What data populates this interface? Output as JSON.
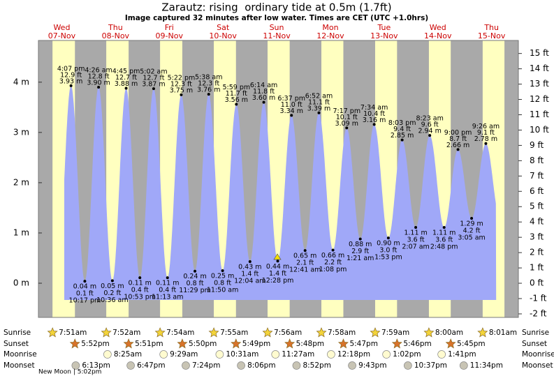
{
  "chart_data": {
    "type": "tide",
    "title": "Zarautz: rising  ordinary tide at 0.5m (1.7ft)",
    "subtitle": "Image captured 32 minutes after low water. Times are CET (UTC +1.0hrs)",
    "days": [
      {
        "weekday": "Wed",
        "date": "07-Nov"
      },
      {
        "weekday": "Thu",
        "date": "08-Nov"
      },
      {
        "weekday": "Fri",
        "date": "09-Nov"
      },
      {
        "weekday": "Sat",
        "date": "10-Nov"
      },
      {
        "weekday": "Sun",
        "date": "11-Nov"
      },
      {
        "weekday": "Mon",
        "date": "12-Nov"
      },
      {
        "weekday": "Tue",
        "date": "13-Nov"
      },
      {
        "weekday": "Wed",
        "date": "14-Nov"
      },
      {
        "weekday": "Thu",
        "date": "15-Nov"
      }
    ],
    "tides": [
      {
        "time": "4:07 pm",
        "height": 3.93,
        "height_label": "3.93 m",
        "feet_label": "12.9 ft"
      },
      {
        "time": "10:17 pm",
        "height": 0.04,
        "height_label": "0.04 m",
        "feet_label": "0.1 ft"
      },
      {
        "time": "4:26 am",
        "height": 3.9,
        "height_label": "3.90 m",
        "feet_label": "12.8 ft"
      },
      {
        "time": "10:36 am",
        "height": 0.05,
        "height_label": "0.05 m",
        "feet_label": "0.2 ft"
      },
      {
        "time": "4:45 pm",
        "height": 3.88,
        "height_label": "3.88 m",
        "feet_label": "12.7 ft"
      },
      {
        "time": "10:53 pm",
        "height": 0.11,
        "height_label": "0.11 m",
        "feet_label": "0.4 ft"
      },
      {
        "time": "5:02 am",
        "height": 3.87,
        "height_label": "3.87 m",
        "feet_label": "12.7 ft"
      },
      {
        "time": "11:13 am",
        "height": 0.11,
        "height_label": "0.11 m",
        "feet_label": "0.4 ft"
      },
      {
        "time": "5:22 pm",
        "height": 3.75,
        "height_label": "3.75 m",
        "feet_label": "12.3 ft"
      },
      {
        "time": "11:29 pm",
        "height": 0.24,
        "height_label": "0.24 m",
        "feet_label": "0.8 ft"
      },
      {
        "time": "5:38 am",
        "height": 3.76,
        "height_label": "3.76 m",
        "feet_label": "12.3 ft"
      },
      {
        "time": "11:50 am",
        "height": 0.25,
        "height_label": "0.25 m",
        "feet_label": "0.8 ft"
      },
      {
        "time": "5:59 pm",
        "height": 3.56,
        "height_label": "3.56 m",
        "feet_label": "11.7 ft"
      },
      {
        "time": "12:04 am",
        "height": 0.43,
        "height_label": "0.43 m",
        "feet_label": "1.4 ft"
      },
      {
        "time": "6:14 am",
        "height": 3.6,
        "height_label": "3.60 m",
        "feet_label": "11.8 ft"
      },
      {
        "time": "12:28 pm",
        "height": 0.44,
        "height_label": "0.44 m",
        "feet_label": "1.4 ft"
      },
      {
        "time": "6:37 pm",
        "height": 3.34,
        "height_label": "3.34 m",
        "feet_label": "11.0 ft"
      },
      {
        "time": "12:41 am",
        "height": 0.65,
        "height_label": "0.65 m",
        "feet_label": "2.1 ft"
      },
      {
        "time": "6:52 am",
        "height": 3.39,
        "height_label": "3.39 m",
        "feet_label": "11.1 ft"
      },
      {
        "time": "1:08 pm",
        "height": 0.66,
        "height_label": "0.66 m",
        "feet_label": "2.2 ft"
      },
      {
        "time": "7:17 pm",
        "height": 3.09,
        "height_label": "3.09 m",
        "feet_label": "10.1 ft"
      },
      {
        "time": "1:21 am",
        "height": 0.88,
        "height_label": "0.88 m",
        "feet_label": "2.9 ft"
      },
      {
        "time": "7:34 am",
        "height": 3.16,
        "height_label": "3.16 m",
        "feet_label": "10.4 ft"
      },
      {
        "time": "1:53 pm",
        "height": 0.9,
        "height_label": "0.90 m",
        "feet_label": "3.0 ft"
      },
      {
        "time": "8:03 pm",
        "height": 2.85,
        "height_label": "2.85 m",
        "feet_label": "9.4 ft"
      },
      {
        "time": "2:07 am",
        "height": 1.11,
        "height_label": "1.11 m",
        "feet_label": "3.6 ft"
      },
      {
        "time": "8:23 am",
        "height": 2.94,
        "height_label": "2.94 m",
        "feet_label": "9.6 ft"
      },
      {
        "time": "2:48 pm",
        "height": 1.11,
        "height_label": "1.11 m",
        "feet_label": "3.6 ft"
      },
      {
        "time": "9:00 pm",
        "height": 2.66,
        "height_label": "2.66 m",
        "feet_label": "8.7 ft"
      },
      {
        "time": "3:05 am",
        "height": 1.29,
        "height_label": "1.29 m",
        "feet_label": "4.2 ft"
      },
      {
        "time": "9:26 am",
        "height": 2.78,
        "height_label": "2.78 m",
        "feet_label": "9.1 ft"
      }
    ],
    "ylim": [
      -0.68,
      4.83
    ],
    "yticks": [
      {
        "value": 0,
        "label": "0 m"
      },
      {
        "value": 1,
        "label": "1 m"
      },
      {
        "value": 2,
        "label": "2 m"
      },
      {
        "value": 3,
        "label": "3 m"
      },
      {
        "value": 4,
        "label": "4 m"
      }
    ],
    "y2lim": [
      -2.23,
      15.85
    ],
    "y2ticks": [
      {
        "value": -2,
        "label": "-2 ft"
      },
      {
        "value": -1,
        "label": "-1 ft"
      },
      {
        "value": 0,
        "label": "0 ft"
      },
      {
        "value": 1,
        "label": "1 ft"
      },
      {
        "value": 2,
        "label": "2 ft"
      },
      {
        "value": 3,
        "label": "3 ft"
      },
      {
        "value": 4,
        "label": "4 ft"
      },
      {
        "value": 5,
        "label": "5 ft"
      },
      {
        "value": 6,
        "label": "6 ft"
      },
      {
        "value": 7,
        "label": "7 ft"
      },
      {
        "value": 8,
        "label": "8 ft"
      },
      {
        "value": 9,
        "label": "9 ft"
      },
      {
        "value": 10,
        "label": "10 ft"
      },
      {
        "value": 11,
        "label": "11 ft"
      },
      {
        "value": 12,
        "label": "12 ft"
      },
      {
        "value": 13,
        "label": "13 ft"
      },
      {
        "value": 14,
        "label": "14 ft"
      },
      {
        "value": 15,
        "label": "15 ft"
      }
    ],
    "almanac": [
      {
        "name": "Sunrise",
        "times": [
          "7:51am",
          "7:52am",
          "7:54am",
          "7:55am",
          "7:56am",
          "7:58am",
          "7:59am",
          "8:00am",
          "8:01am"
        ]
      },
      {
        "name": "Sunset",
        "times": [
          "5:52pm",
          "5:51pm",
          "5:50pm",
          "5:49pm",
          "5:48pm",
          "5:47pm",
          "5:46pm",
          "5:45pm",
          null
        ]
      },
      {
        "name": "Moonrise",
        "times": [
          null,
          "8:25am",
          "9:29am",
          "10:31am",
          "11:27am",
          "12:18pm",
          "1:02pm",
          "1:41pm",
          null
        ]
      },
      {
        "name": "Moonset",
        "times": [
          "6:13pm",
          "6:47pm",
          "7:24pm",
          "8:06pm",
          "8:52pm",
          "9:43pm",
          "10:37pm",
          "11:34pm",
          null
        ]
      }
    ],
    "moon_phase": "New Moon | 5:02pm"
  }
}
